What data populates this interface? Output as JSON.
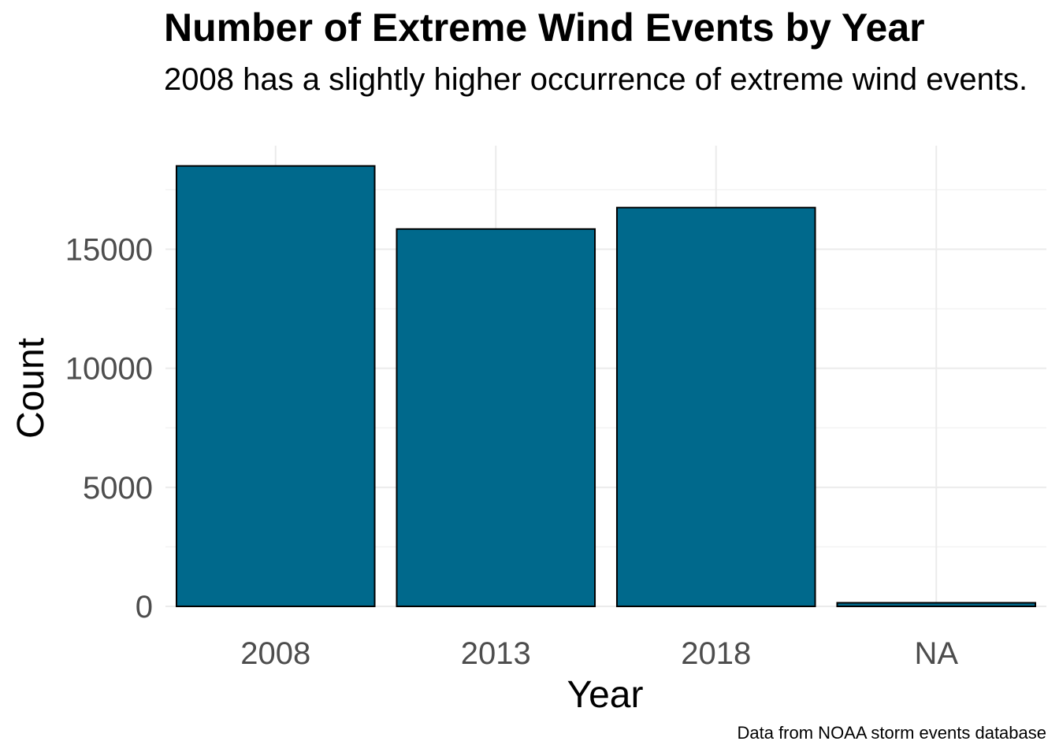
{
  "chart_data": {
    "type": "bar",
    "title": "Number of Extreme Wind Events by Year",
    "subtitle": "2008 has a slightly higher occurrence of extreme wind events.",
    "caption": "Data from NOAA storm events database",
    "xlabel": "Year",
    "ylabel": "Count",
    "categories": [
      "2008",
      "2013",
      "2018",
      "NA"
    ],
    "values": [
      18500,
      15850,
      16750,
      150
    ],
    "ylim": [
      0,
      19350
    ],
    "yticks": [
      0,
      5000,
      10000,
      15000
    ],
    "ytick_labels": [
      "0",
      "5000",
      "10000",
      "15000"
    ],
    "grid": true,
    "legend": "none",
    "colors": {
      "bar_fill": "#00698c",
      "bar_stroke": "#000000",
      "grid_major": "#ebebeb",
      "grid_minor": "#f3f3f3",
      "tick_text": "#4d4d4d",
      "axis_title": "#000000"
    }
  }
}
